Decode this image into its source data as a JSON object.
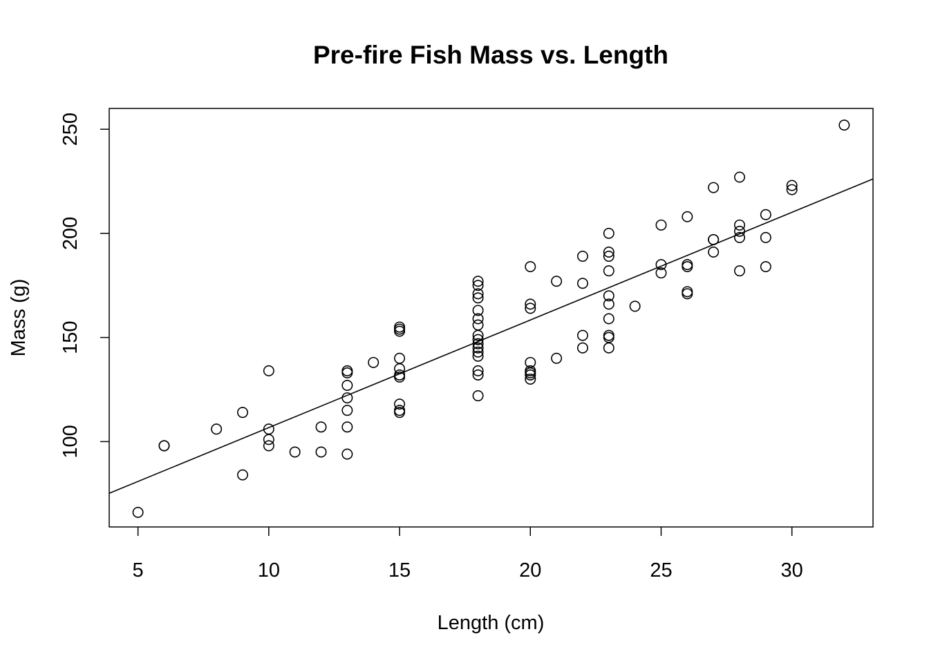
{
  "chart_data": {
    "type": "scatter",
    "title": "Pre-fire Fish Mass vs. Length",
    "xlabel": "Length (cm)",
    "ylabel": "Mass (g)",
    "xlim": [
      3.9,
      33.1
    ],
    "ylim": [
      59,
      260
    ],
    "x_ticks": [
      5,
      10,
      15,
      20,
      25,
      30
    ],
    "x_tick_labels": [
      "5",
      "10",
      "15",
      "20",
      "25",
      "30"
    ],
    "y_ticks": [
      100,
      150,
      200,
      250
    ],
    "y_tick_labels": [
      "100",
      "150",
      "200",
      "250"
    ],
    "marker": "open-circle",
    "grid": false,
    "legend": "none",
    "colors": {
      "points": "#000000",
      "line": "#000000",
      "frame": "#000000"
    },
    "fit_line": {
      "intercept": 55,
      "slope": 5.17
    },
    "points": [
      [
        5,
        66
      ],
      [
        6,
        98
      ],
      [
        6,
        98
      ],
      [
        8,
        106
      ],
      [
        9,
        114
      ],
      [
        9,
        84
      ],
      [
        10,
        134
      ],
      [
        10,
        106
      ],
      [
        10,
        101
      ],
      [
        10,
        98
      ],
      [
        11,
        95
      ],
      [
        12,
        107
      ],
      [
        12,
        95
      ],
      [
        13,
        134
      ],
      [
        13,
        133
      ],
      [
        13,
        127
      ],
      [
        13,
        121
      ],
      [
        13,
        115
      ],
      [
        13,
        107
      ],
      [
        13,
        94
      ],
      [
        14,
        138
      ],
      [
        15,
        155
      ],
      [
        15,
        154
      ],
      [
        15,
        153
      ],
      [
        15,
        140
      ],
      [
        15,
        135
      ],
      [
        15,
        132
      ],
      [
        15,
        131
      ],
      [
        15,
        118
      ],
      [
        15,
        115
      ],
      [
        15,
        114
      ],
      [
        18,
        177
      ],
      [
        18,
        175
      ],
      [
        18,
        171
      ],
      [
        18,
        169
      ],
      [
        18,
        163
      ],
      [
        18,
        159
      ],
      [
        18,
        156
      ],
      [
        18,
        151
      ],
      [
        18,
        149
      ],
      [
        18,
        147
      ],
      [
        18,
        145
      ],
      [
        18,
        143
      ],
      [
        18,
        141
      ],
      [
        18,
        134
      ],
      [
        18,
        132
      ],
      [
        18,
        122
      ],
      [
        20,
        184
      ],
      [
        20,
        166
      ],
      [
        20,
        164
      ],
      [
        20,
        138
      ],
      [
        20,
        134
      ],
      [
        20,
        133
      ],
      [
        20,
        132
      ],
      [
        20,
        130
      ],
      [
        21,
        177
      ],
      [
        21,
        140
      ],
      [
        22,
        189
      ],
      [
        22,
        176
      ],
      [
        22,
        151
      ],
      [
        22,
        145
      ],
      [
        23,
        200
      ],
      [
        23,
        191
      ],
      [
        23,
        189
      ],
      [
        23,
        182
      ],
      [
        23,
        170
      ],
      [
        23,
        166
      ],
      [
        23,
        159
      ],
      [
        23,
        151
      ],
      [
        23,
        150
      ],
      [
        23,
        145
      ],
      [
        24,
        165
      ],
      [
        25,
        204
      ],
      [
        25,
        185
      ],
      [
        25,
        181
      ],
      [
        26,
        208
      ],
      [
        26,
        185
      ],
      [
        26,
        184
      ],
      [
        26,
        172
      ],
      [
        26,
        171
      ],
      [
        27,
        222
      ],
      [
        27,
        197
      ],
      [
        27,
        197
      ],
      [
        27,
        191
      ],
      [
        28,
        227
      ],
      [
        28,
        204
      ],
      [
        28,
        201
      ],
      [
        28,
        198
      ],
      [
        28,
        182
      ],
      [
        29,
        209
      ],
      [
        29,
        198
      ],
      [
        29,
        184
      ],
      [
        30,
        223
      ],
      [
        30,
        221
      ],
      [
        32,
        252
      ]
    ]
  }
}
